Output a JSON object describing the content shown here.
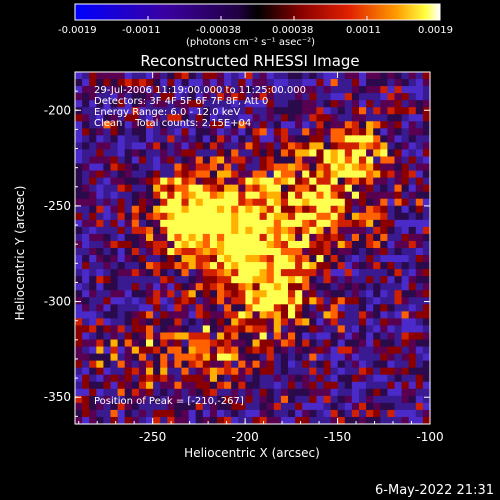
{
  "colorbar": {
    "tick_labels": [
      "-0.0019",
      "-0.0011",
      "-0.00038",
      "0.00038",
      "0.0011",
      "0.0019"
    ],
    "units_label": "(photons cm⁻² s⁻¹ asec⁻²)"
  },
  "plot": {
    "title": "Reconstructed RHESSI Image",
    "xlabel": "Heliocentric X (arcsec)",
    "ylabel": "Heliocentric Y (arcsec)",
    "x_ticks": [
      "-250",
      "-200",
      "-150",
      "-100"
    ],
    "y_ticks": [
      "-200",
      "-250",
      "-300",
      "-350"
    ],
    "info_lines": [
      "29-Jul-2006 11:19:00.000 to 11:25:00.000",
      "Detectors: 3F 4F 5F 6F 7F 8F, Att 0",
      "Energy Range: 6.0 - 12.0 keV",
      "Clean    Total counts: 2.15E+04"
    ],
    "peak_text": "Position of Peak = [-210,-267]"
  },
  "footer": {
    "timestamp": "6-May-2022 21:31"
  },
  "colors": {
    "background": "#000000",
    "text": "#ffffff"
  },
  "chart_data": {
    "type": "heatmap",
    "title": "Reconstructed RHESSI Image",
    "xlabel": "Heliocentric X (arcsec)",
    "ylabel": "Heliocentric Y (arcsec)",
    "xlim": [
      -292,
      -100
    ],
    "ylim": [
      -364,
      -180
    ],
    "x_ticks": [
      -250,
      -200,
      -150,
      -100
    ],
    "y_ticks": [
      -200,
      -250,
      -300,
      -350
    ],
    "colorbar_range": [
      -0.0019,
      0.0019
    ],
    "peak_position": [
      -210,
      -267
    ]
  }
}
